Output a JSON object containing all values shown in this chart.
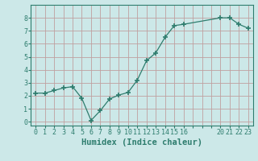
{
  "x": [
    0,
    1,
    2,
    3,
    4,
    5,
    6,
    7,
    8,
    9,
    10,
    11,
    12,
    13,
    14,
    15,
    16,
    20,
    21,
    22,
    23
  ],
  "y": [
    2.2,
    2.2,
    2.4,
    2.6,
    2.7,
    1.8,
    0.1,
    0.85,
    1.75,
    2.05,
    2.25,
    3.2,
    4.7,
    5.3,
    6.5,
    7.4,
    7.5,
    8.0,
    8.0,
    7.5,
    7.2
  ],
  "line_color": "#2e7d6e",
  "marker_color": "#2e7d6e",
  "bg_color": "#cce8e8",
  "grid_color": "#c0a0a0",
  "xlabel": "Humidex (Indice chaleur)",
  "xlim": [
    -0.5,
    23.5
  ],
  "ylim": [
    -0.3,
    9.0
  ],
  "yticks": [
    0,
    1,
    2,
    3,
    4,
    5,
    6,
    7,
    8
  ],
  "xtick_labels": [
    "0",
    "1",
    "2",
    "3",
    "4",
    "5",
    "6",
    "7",
    "8",
    "9",
    "10",
    "11",
    "12",
    "13",
    "14",
    "15",
    "16",
    "",
    "",
    "",
    "20",
    "21",
    "22",
    "23"
  ],
  "xtick_positions": [
    0,
    1,
    2,
    3,
    4,
    5,
    6,
    7,
    8,
    9,
    10,
    11,
    12,
    13,
    14,
    15,
    16,
    17,
    18,
    19,
    20,
    21,
    22,
    23
  ],
  "font_color": "#2e7d6e",
  "axis_color": "#2e7d6e",
  "label_fontsize": 6.5,
  "tick_fontsize": 6.0,
  "xlabel_fontsize": 7.5
}
